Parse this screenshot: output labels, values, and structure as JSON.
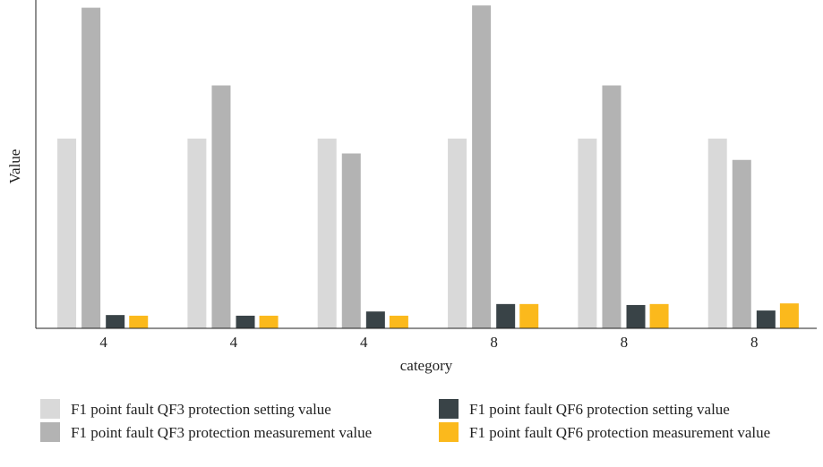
{
  "chart_data": {
    "type": "bar",
    "y_label": "Value",
    "x_label": "category",
    "categories": [
      "4",
      "4",
      "4",
      "8",
      "8",
      "8"
    ],
    "ylim": [
      0,
      100
    ],
    "series": [
      {
        "name": "F1 point fault QF3 protection setting value",
        "color": "#d9d9d9",
        "values": [
          58.6,
          58.6,
          58.6,
          58.6,
          58.6,
          58.6
        ]
      },
      {
        "name": "F1 point fault QF3 protection measurement value",
        "color": "#b3b3b3",
        "values": [
          99,
          75,
          54,
          99.7,
          75,
          52
        ]
      },
      {
        "name": "F1 point fault QF6 protection setting value",
        "color": "#394347",
        "values": [
          4.1,
          3.9,
          5.2,
          7.5,
          7.2,
          5.5
        ]
      },
      {
        "name": "F1 point fault QF6 protection measurement value",
        "color": "#fbb91c",
        "values": [
          3.9,
          3.9,
          3.9,
          7.5,
          7.5,
          7.7
        ]
      }
    ]
  }
}
